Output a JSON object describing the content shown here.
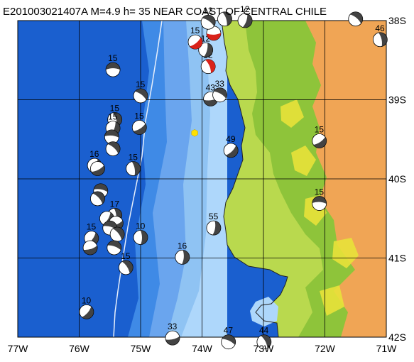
{
  "header": {
    "title": "E201003021407A  M=4.9  h=  35  NEAR COAST OF CENTRAL CHILE"
  },
  "axes": {
    "lon_labels": [
      "77W",
      "76W",
      "75W",
      "74W",
      "73W",
      "72W",
      "71W"
    ],
    "lat_labels": [
      "38S",
      "39S",
      "40S",
      "41S",
      "42S"
    ]
  },
  "event": {
    "lon": -74.12,
    "lat": -39.42,
    "color": "#ffe000"
  },
  "colors": {
    "deep_ocean": "#1a5fcf",
    "mid_ocean": "#3f8ae6",
    "shelf": "#8fc3f3",
    "near_shore": "#aed7fb",
    "lowland": "#b9d94e",
    "hills": "#8ec43a",
    "mountains": "#f0a555",
    "peaks": "#e8e23a",
    "grid": "#000000",
    "trench_line": "#e6eefb",
    "beach_dark": "#222222",
    "beach_fill": "#ffffff",
    "beach_highlight": "#d9221a"
  },
  "mechanisms": [
    {
      "depth": "15",
      "lon": -75.45,
      "lat": -38.62,
      "hl": false
    },
    {
      "depth": "15",
      "lon": -75.0,
      "lat": -38.95,
      "hl": false
    },
    {
      "depth": "15",
      "lon": -75.42,
      "lat": -39.25,
      "hl": false
    },
    {
      "depth": "15",
      "lon": -75.45,
      "lat": -39.36,
      "hl": false
    },
    {
      "depth": "15",
      "lon": -75.02,
      "lat": -39.35,
      "hl": false
    },
    {
      "depth": "",
      "lon": -75.47,
      "lat": -39.47,
      "hl": false
    },
    {
      "depth": "",
      "lon": -75.45,
      "lat": -39.62,
      "hl": false
    },
    {
      "depth": "15",
      "lon": -75.12,
      "lat": -39.87,
      "hl": false
    },
    {
      "depth": "16",
      "lon": -75.75,
      "lat": -39.83,
      "hl": false
    },
    {
      "depth": "",
      "lon": -75.7,
      "lat": -39.87,
      "hl": false
    },
    {
      "depth": "",
      "lon": -75.65,
      "lat": -40.15,
      "hl": false
    },
    {
      "depth": "",
      "lon": -75.7,
      "lat": -40.25,
      "hl": false
    },
    {
      "depth": "17",
      "lon": -75.42,
      "lat": -40.46,
      "hl": false
    },
    {
      "depth": "",
      "lon": -75.55,
      "lat": -40.5,
      "hl": false
    },
    {
      "depth": "",
      "lon": -75.4,
      "lat": -40.56,
      "hl": false
    },
    {
      "depth": "",
      "lon": -75.5,
      "lat": -40.62,
      "hl": false
    },
    {
      "depth": "",
      "lon": -75.38,
      "lat": -40.7,
      "hl": false
    },
    {
      "depth": "10",
      "lon": -75.0,
      "lat": -40.74,
      "hl": false
    },
    {
      "depth": "15",
      "lon": -75.8,
      "lat": -40.75,
      "hl": false
    },
    {
      "depth": "",
      "lon": -75.82,
      "lat": -40.87,
      "hl": false
    },
    {
      "depth": "",
      "lon": -75.43,
      "lat": -40.87,
      "hl": false
    },
    {
      "depth": "15",
      "lon": -75.24,
      "lat": -41.12,
      "hl": false
    },
    {
      "depth": "16",
      "lon": -74.32,
      "lat": -40.99,
      "hl": false
    },
    {
      "depth": "10",
      "lon": -75.88,
      "lat": -41.68,
      "hl": false
    },
    {
      "depth": "33",
      "lon": -74.48,
      "lat": -42.01,
      "hl": false
    },
    {
      "depth": "47",
      "lon": -73.57,
      "lat": -42.06,
      "hl": false
    },
    {
      "depth": "44",
      "lon": -72.99,
      "lat": -42.06,
      "hl": false
    },
    {
      "depth": "55",
      "lon": -73.81,
      "lat": -40.62,
      "hl": false
    },
    {
      "depth": "49",
      "lon": -73.53,
      "lat": -39.64,
      "hl": false
    },
    {
      "depth": "43",
      "lon": -73.86,
      "lat": -38.99,
      "hl": false
    },
    {
      "depth": "33",
      "lon": -73.71,
      "lat": -38.94,
      "hl": false
    },
    {
      "depth": "12",
      "lon": -73.9,
      "lat": -38.58,
      "hl": true
    },
    {
      "depth": "12",
      "lon": -73.94,
      "lat": -38.37,
      "hl": false
    },
    {
      "depth": "15",
      "lon": -74.11,
      "lat": -38.27,
      "hl": true
    },
    {
      "depth": "",
      "lon": -73.81,
      "lat": -38.16,
      "hl": true
    },
    {
      "depth": "12",
      "lon": -73.9,
      "lat": -38.02,
      "hl": false
    },
    {
      "depth": "",
      "lon": -73.63,
      "lat": -37.98,
      "hl": false
    },
    {
      "depth": "12",
      "lon": -73.3,
      "lat": -38.0,
      "hl": false
    },
    {
      "depth": "15",
      "lon": -72.09,
      "lat": -39.52,
      "hl": false
    },
    {
      "depth": "15",
      "lon": -72.09,
      "lat": -40.31,
      "hl": false
    },
    {
      "depth": "",
      "lon": -71.5,
      "lat": -37.98,
      "hl": false
    },
    {
      "depth": "46",
      "lon": -71.1,
      "lat": -38.24,
      "hl": false
    }
  ]
}
